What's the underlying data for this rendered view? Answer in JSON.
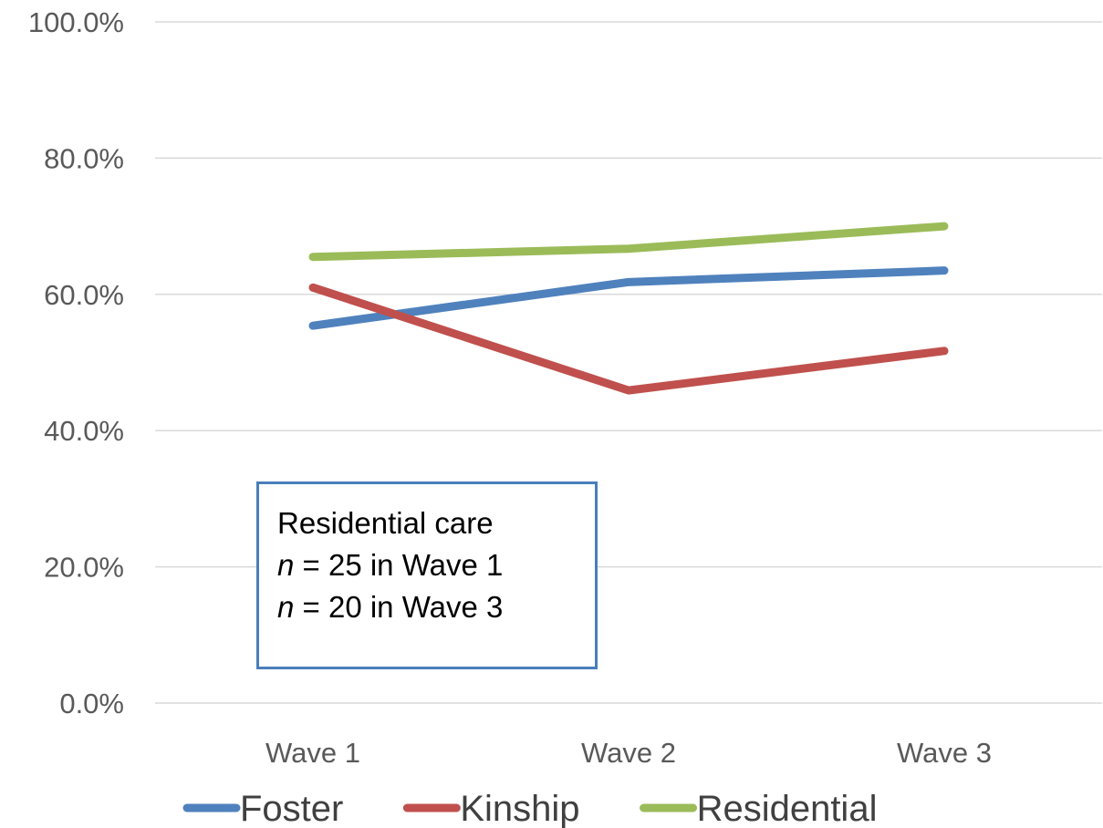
{
  "chart_data": {
    "type": "line",
    "categories": [
      "Wave 1",
      "Wave 2",
      "Wave 3"
    ],
    "series": [
      {
        "name": "Foster",
        "values": [
          55.4,
          61.8,
          63.5
        ],
        "color": "#4f81bd"
      },
      {
        "name": "Kinship",
        "values": [
          61.0,
          45.9,
          51.7
        ],
        "color": "#c0504d"
      },
      {
        "name": "Residential",
        "values": [
          65.5,
          66.7,
          70.0
        ],
        "color": "#9bbb59"
      }
    ],
    "ylim": [
      0,
      100
    ],
    "yticks": [
      "0.0%",
      "20.0%",
      "40.0%",
      "60.0%",
      "80.0%",
      "100.0%"
    ],
    "grid": true,
    "legend_position": "bottom",
    "gridline_color": "#d9d9d9",
    "annotation": {
      "line1": "Residential care",
      "line2_var": "n",
      "line2_rest": " = 25 in Wave 1",
      "line3_var": "n",
      "line3_rest": " = 20 in Wave 3",
      "border_color": "#4a7ebb"
    }
  }
}
